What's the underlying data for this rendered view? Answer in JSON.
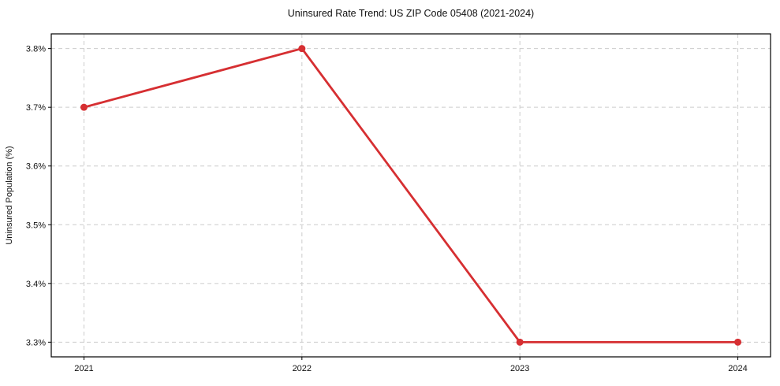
{
  "chart_data": {
    "type": "line",
    "title": "Uninsured Rate Trend: US ZIP Code 05408 (2021-2024)",
    "xlabel": "",
    "ylabel": "Uninsured Population (%)",
    "x": [
      2021,
      2022,
      2023,
      2024
    ],
    "values": [
      3.7,
      3.8,
      3.3,
      3.3
    ],
    "xticks": {
      "values": [
        2021,
        2022,
        2023,
        2024
      ],
      "labels": [
        "2021",
        "2022",
        "2023",
        "2024"
      ]
    },
    "yticks": {
      "values": [
        3.3,
        3.4,
        3.5,
        3.6,
        3.7,
        3.8
      ],
      "labels": [
        "3.3%",
        "3.4%",
        "3.5%",
        "3.6%",
        "3.7%",
        "3.8%"
      ]
    },
    "xlim": [
      2020.85,
      2024.15
    ],
    "ylim": [
      3.275,
      3.825
    ],
    "grid": true,
    "grid_style": "dashed",
    "legend": false,
    "colors": {
      "line": "#d62f32",
      "marker": "#d62f32",
      "grid": "#cccccc",
      "frame": "#000000",
      "text": "#111111",
      "background": "#ffffff"
    }
  }
}
